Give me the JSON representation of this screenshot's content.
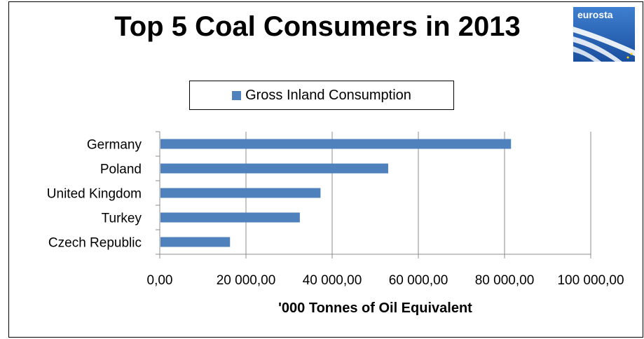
{
  "chart_data": {
    "type": "bar",
    "orientation": "horizontal",
    "title": "Top 5 Coal Consumers in 2013",
    "categories": [
      "Germany",
      "Poland",
      "United Kingdom",
      "Turkey",
      "Czech Republic"
    ],
    "series": [
      {
        "name": "Gross Inland Consumption",
        "values": [
          81500,
          53000,
          37300,
          32500,
          16300
        ],
        "color": "#4f81bd"
      }
    ],
    "xlabel": "'000 Tonnes of Oil Equivalent",
    "ylabel": "",
    "xlim": [
      0,
      100000
    ],
    "x_ticks": [
      0,
      20000,
      40000,
      60000,
      80000,
      100000
    ],
    "x_tick_labels": [
      "0,00",
      "20 000,00",
      "40 000,00",
      "60 000,00",
      "80 000,00",
      "100 000,00"
    ],
    "grid": "vertical",
    "legend_position": "top"
  },
  "logo": {
    "text": "eurosta",
    "icon": "eurostat-logo-icon"
  }
}
